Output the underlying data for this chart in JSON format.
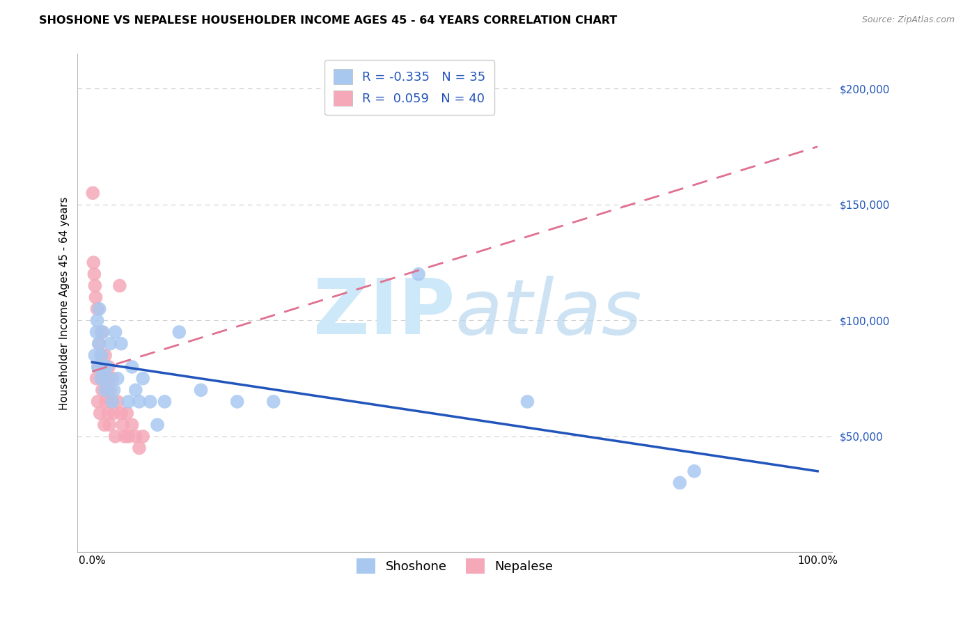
{
  "title": "SHOSHONE VS NEPALESE HOUSEHOLDER INCOME AGES 45 - 64 YEARS CORRELATION CHART",
  "source": "Source: ZipAtlas.com",
  "ylabel": "Householder Income Ages 45 - 64 years",
  "shoshone_R": -0.335,
  "shoshone_N": 35,
  "nepalese_R": 0.059,
  "nepalese_N": 40,
  "shoshone_color": "#a8c8f0",
  "nepalese_color": "#f5a8b8",
  "shoshone_line_color": "#2255bb",
  "nepalese_line_color": "#e07090",
  "ylim": [
    0,
    215000
  ],
  "xlim": [
    -0.02,
    1.02
  ],
  "background_color": "#ffffff",
  "grid_color": "#cccccc",
  "watermark_color": "#cde8f8",
  "legend_fontsize": 13,
  "title_fontsize": 11.5,
  "axis_label_fontsize": 11,
  "tick_label_fontsize": 11,
  "shoshone_x": [
    0.004,
    0.006,
    0.007,
    0.008,
    0.009,
    0.01,
    0.012,
    0.013,
    0.015,
    0.016,
    0.018,
    0.02,
    0.022,
    0.025,
    0.028,
    0.03,
    0.032,
    0.035,
    0.04,
    0.05,
    0.055,
    0.06,
    0.065,
    0.07,
    0.08,
    0.09,
    0.1,
    0.12,
    0.15,
    0.2,
    0.25,
    0.45,
    0.6,
    0.81,
    0.83
  ],
  "shoshone_y": [
    85000,
    95000,
    100000,
    80000,
    90000,
    105000,
    75000,
    85000,
    95000,
    80000,
    70000,
    80000,
    75000,
    90000,
    65000,
    70000,
    95000,
    75000,
    90000,
    65000,
    80000,
    70000,
    65000,
    75000,
    65000,
    55000,
    65000,
    95000,
    70000,
    65000,
    65000,
    120000,
    65000,
    30000,
    35000
  ],
  "nepalese_x": [
    0.001,
    0.002,
    0.003,
    0.004,
    0.005,
    0.006,
    0.007,
    0.008,
    0.009,
    0.01,
    0.011,
    0.012,
    0.013,
    0.014,
    0.015,
    0.016,
    0.017,
    0.018,
    0.019,
    0.02,
    0.021,
    0.022,
    0.023,
    0.024,
    0.025,
    0.026,
    0.028,
    0.03,
    0.032,
    0.035,
    0.038,
    0.04,
    0.042,
    0.045,
    0.048,
    0.05,
    0.055,
    0.06,
    0.065,
    0.07
  ],
  "nepalese_y": [
    155000,
    125000,
    120000,
    115000,
    110000,
    75000,
    105000,
    65000,
    80000,
    90000,
    60000,
    85000,
    95000,
    70000,
    75000,
    80000,
    55000,
    85000,
    65000,
    75000,
    70000,
    60000,
    80000,
    55000,
    70000,
    65000,
    75000,
    60000,
    50000,
    65000,
    115000,
    60000,
    55000,
    50000,
    60000,
    50000,
    55000,
    50000,
    45000,
    50000
  ],
  "shoshone_trendline_x": [
    0.0,
    1.0
  ],
  "shoshone_trendline_y": [
    82000,
    35000
  ],
  "nepalese_trendline_x": [
    0.0,
    1.0
  ],
  "nepalese_trendline_y": [
    78000,
    175000
  ]
}
